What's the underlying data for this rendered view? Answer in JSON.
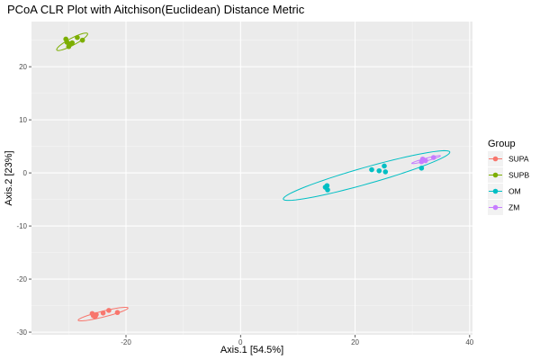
{
  "chart_data": {
    "type": "scatter",
    "title": "PCoA CLR Plot with Aitchison(Euclidean) Distance Metric",
    "xlabel": "Axis.1   [54.5%]",
    "ylabel": "Axis.2   [23%]",
    "xlim": [
      -36.5,
      40.5
    ],
    "ylim": [
      -30.5,
      28.5
    ],
    "x_ticks": [
      -20,
      0,
      20,
      40
    ],
    "y_ticks": [
      -30,
      -20,
      -10,
      0,
      10,
      20
    ],
    "grid": true,
    "legend": {
      "title": "Group",
      "position": "right"
    },
    "series": [
      {
        "name": "SUPA",
        "color": "#F8766D",
        "points": [
          {
            "x": -25.7,
            "y": -26.9
          },
          {
            "x": -25.2,
            "y": -26.7
          },
          {
            "x": -25.9,
            "y": -26.5
          },
          {
            "x": -25.4,
            "y": -27.1
          },
          {
            "x": -24.0,
            "y": -26.4
          },
          {
            "x": -23.0,
            "y": -25.9
          },
          {
            "x": -21.5,
            "y": -26.3
          }
        ],
        "ellipse": {
          "cx": -24.0,
          "cy": -26.6,
          "rx": 4.5,
          "ry": 0.55,
          "angle": 15
        }
      },
      {
        "name": "SUPB",
        "color": "#7CAE00",
        "points": [
          {
            "x": -30.5,
            "y": 25.2
          },
          {
            "x": -29.8,
            "y": 24.3
          },
          {
            "x": -30.0,
            "y": 23.8
          },
          {
            "x": -30.3,
            "y": 24.6
          },
          {
            "x": -28.5,
            "y": 25.5
          },
          {
            "x": -27.6,
            "y": 25.0
          },
          {
            "x": -29.4,
            "y": 24.5
          }
        ],
        "ellipse": {
          "cx": -29.4,
          "cy": 24.7,
          "rx": 3.1,
          "ry": 0.65,
          "angle": 30
        }
      },
      {
        "name": "OM",
        "color": "#00BFC4",
        "points": [
          {
            "x": 14.8,
            "y": -2.7
          },
          {
            "x": 15.2,
            "y": -3.2
          },
          {
            "x": 15.1,
            "y": -2.4
          },
          {
            "x": 22.9,
            "y": 0.6
          },
          {
            "x": 24.2,
            "y": 0.4
          },
          {
            "x": 25.1,
            "y": 1.3
          },
          {
            "x": 25.3,
            "y": 0.2
          },
          {
            "x": 31.6,
            "y": 0.9
          }
        ],
        "ellipse": {
          "cx": 22.0,
          "cy": -0.5,
          "rx": 15.2,
          "ry": 1.55,
          "angle": 17
        }
      },
      {
        "name": "ZM",
        "color": "#C77CFF",
        "points": [
          {
            "x": 31.6,
            "y": 2.1
          },
          {
            "x": 31.9,
            "y": 2.5
          },
          {
            "x": 32.3,
            "y": 2.3
          },
          {
            "x": 33.7,
            "y": 2.9
          },
          {
            "x": 31.8,
            "y": 2.6
          }
        ],
        "ellipse": {
          "cx": 32.4,
          "cy": 2.5,
          "rx": 2.6,
          "ry": 0.25,
          "angle": 16
        }
      }
    ]
  }
}
